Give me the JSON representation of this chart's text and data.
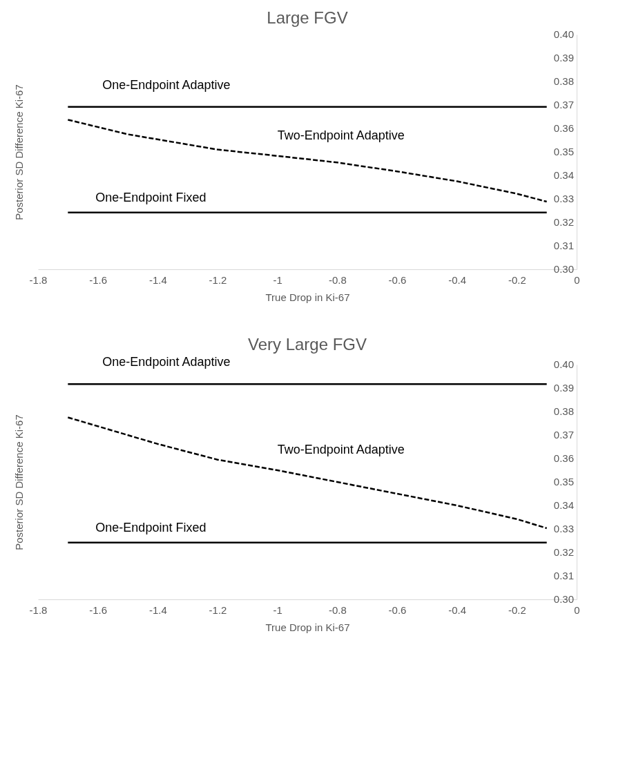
{
  "chart_data": [
    {
      "type": "line",
      "title": "Large FGV",
      "xlabel": "True Drop in Ki-67",
      "ylabel": "Posterior SD Difference Ki-67",
      "xlim": [
        -1.8,
        0
      ],
      "xticks": [
        -1.8,
        -1.6,
        -1.4,
        -1.2,
        -1,
        -0.8,
        -0.6,
        -0.4,
        -0.2,
        0
      ],
      "ylim": [
        0.3,
        0.4
      ],
      "yticks": [
        {
          "value": 0.3,
          "label": "0.30"
        },
        {
          "value": 0.31,
          "label": "0.31"
        },
        {
          "value": 0.32,
          "label": "0.32"
        },
        {
          "value": 0.33,
          "label": "0.33"
        },
        {
          "value": 0.34,
          "label": "0.34"
        },
        {
          "value": 0.35,
          "label": "0.35"
        },
        {
          "value": 0.36,
          "label": "0.36"
        },
        {
          "value": 0.37,
          "label": "0.37"
        },
        {
          "value": 0.38,
          "label": "0.38"
        },
        {
          "value": 0.39,
          "label": "0.39"
        },
        {
          "value": 0.4,
          "label": "0.40"
        }
      ],
      "grid": false,
      "marker": "none",
      "series": [
        {
          "name": "One-Endpoint Adaptive",
          "color": "#000000",
          "line_style": "solid",
          "x": [
            -1.7,
            -0.1
          ],
          "values": [
            0.3692,
            0.3692
          ]
        },
        {
          "name": "Two-Endpoint Adaptive",
          "color": "#000000",
          "line_style": "dashed",
          "x": [
            -1.7,
            -1.5,
            -1.2,
            -1.0,
            -0.8,
            -0.6,
            -0.4,
            -0.2,
            -0.1
          ],
          "values": [
            0.3637,
            0.3575,
            0.351,
            0.3483,
            0.3455,
            0.3417,
            0.3375,
            0.3322,
            0.3288
          ]
        },
        {
          "name": "One-Endpoint Fixed",
          "color": "#000000",
          "line_style": "solid",
          "x": [
            -1.7,
            -0.1
          ],
          "values": [
            0.3242,
            0.3242
          ]
        }
      ]
    },
    {
      "type": "line",
      "title": "Very Large FGV",
      "xlabel": "True Drop in Ki-67",
      "ylabel": "Posterior SD Difference Ki-67",
      "xlim": [
        -1.8,
        0
      ],
      "xticks": [
        -1.8,
        -1.6,
        -1.4,
        -1.2,
        -1,
        -0.8,
        -0.6,
        -0.4,
        -0.2,
        0
      ],
      "ylim": [
        0.3,
        0.4
      ],
      "yticks": [
        {
          "value": 0.3,
          "label": "0.30"
        },
        {
          "value": 0.31,
          "label": "0.31"
        },
        {
          "value": 0.32,
          "label": "0.32"
        },
        {
          "value": 0.33,
          "label": "0.33"
        },
        {
          "value": 0.34,
          "label": "0.34"
        },
        {
          "value": 0.35,
          "label": "0.35"
        },
        {
          "value": 0.36,
          "label": "0.36"
        },
        {
          "value": 0.37,
          "label": "0.37"
        },
        {
          "value": 0.38,
          "label": "0.38"
        },
        {
          "value": 0.39,
          "label": "0.39"
        },
        {
          "value": 0.4,
          "label": "0.40"
        }
      ],
      "grid": false,
      "marker": "none",
      "series": [
        {
          "name": "One-Endpoint Adaptive",
          "color": "#000000",
          "line_style": "solid",
          "x": [
            -1.7,
            -0.1
          ],
          "values": [
            0.3917,
            0.3917
          ]
        },
        {
          "name": "Two-Endpoint Adaptive",
          "color": "#000000",
          "line_style": "dashed",
          "x": [
            -1.7,
            -1.4,
            -1.2,
            -1.0,
            -0.8,
            -0.6,
            -0.4,
            -0.2,
            -0.1
          ],
          "values": [
            0.3775,
            0.3662,
            0.3595,
            0.355,
            0.35,
            0.345,
            0.34,
            0.3342,
            0.3303
          ]
        },
        {
          "name": "One-Endpoint Fixed",
          "color": "#000000",
          "line_style": "solid",
          "x": [
            -1.7,
            -0.1
          ],
          "values": [
            0.3242,
            0.3242
          ]
        }
      ]
    }
  ]
}
